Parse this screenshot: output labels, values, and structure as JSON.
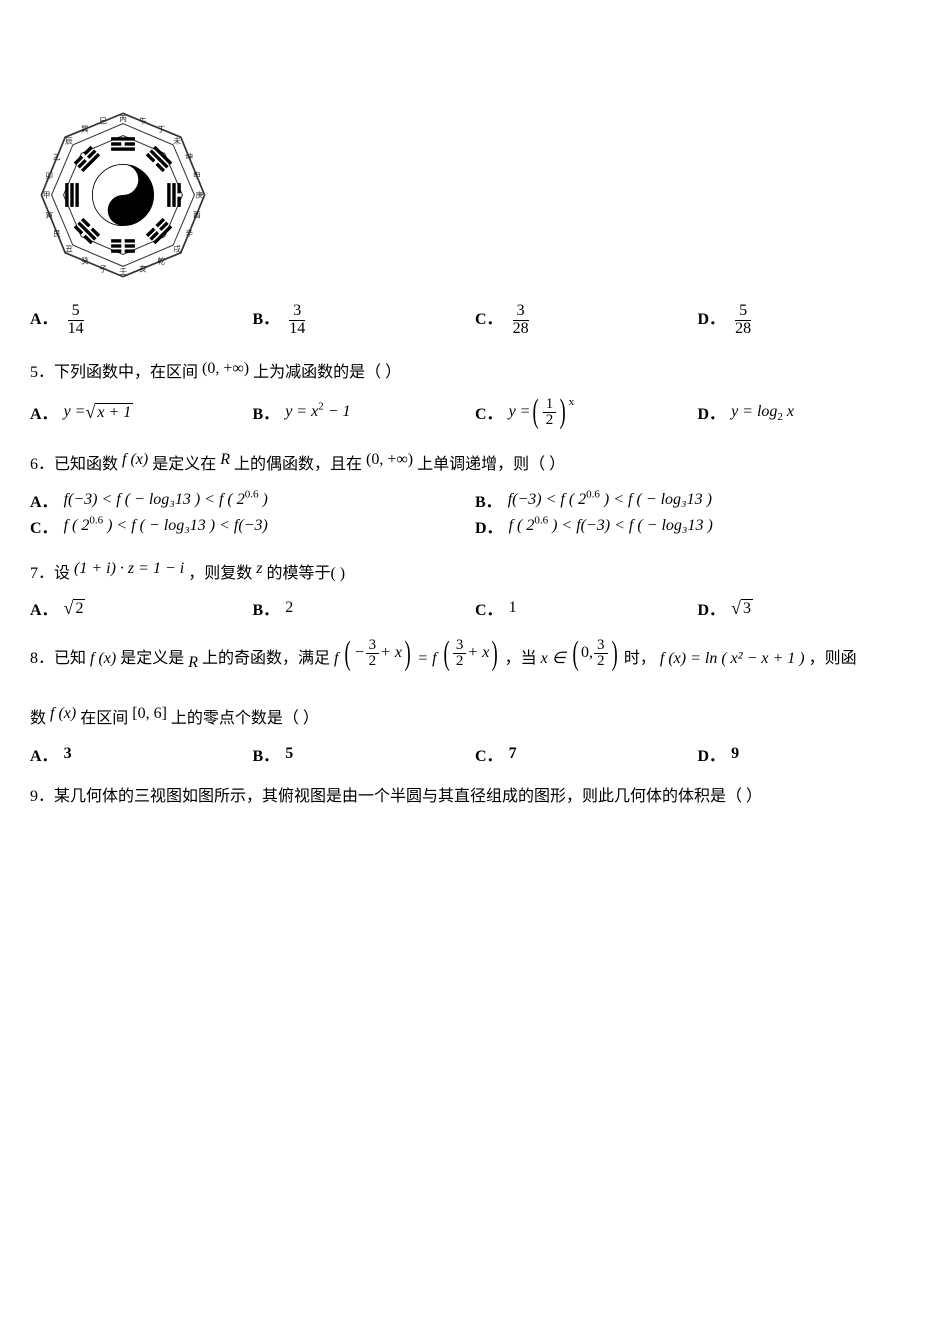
{
  "bagua": {
    "size": 170,
    "outer_ring_text": [
      "丙",
      "午",
      "丁",
      "未",
      "坤",
      "申",
      "庚",
      "酉",
      "辛",
      "戌",
      "乾",
      "亥",
      "壬",
      "子",
      "癸",
      "丑",
      "艮",
      "寅",
      "甲",
      "卯",
      "乙",
      "辰",
      "巽",
      "巳"
    ],
    "bg": "#ffffff",
    "stroke": "#3a3a3a",
    "yin": "#000000",
    "yang": "#ffffff"
  },
  "q4_opts": {
    "A_num": "5",
    "A_den": "14",
    "B_num": "3",
    "B_den": "14",
    "C_num": "3",
    "C_den": "28",
    "D_num": "5",
    "D_den": "28"
  },
  "q5": {
    "stem_prefix": "5．下列函数中，在区间",
    "interval": "(0, +∞)",
    "stem_suffix": "上为减函数的是（  ）",
    "A_lhs": "y =",
    "A_rad": "x + 1",
    "B": "y = x",
    "B_sup": "2",
    "B_tail": " − 1",
    "C_lhs": "y =",
    "C_frac_num": "1",
    "C_frac_den": "2",
    "C_exp": "x",
    "D": "y = log",
    "D_sub": "2",
    "D_tail": " x"
  },
  "q6": {
    "stem_a": "6．已知函数 ",
    "fx": "f (x)",
    "stem_b": " 是定义在 ",
    "R": "R",
    "stem_c": " 上的偶函数，且在 ",
    "interval": "(0, +∞)",
    "stem_d": " 上单调递增，则（  ）",
    "A": "f(−3) < f ( − log₃13 ) < f ( 2",
    "A_sup": "0.6",
    "A_tail": " )",
    "B": "f(−3) < f ( 2",
    "B_sup": "0.6",
    "B_tail": " ) < f ( − log₃13 )",
    "C": "f ( 2",
    "C_sup": "0.6",
    "C_tail": " ) < f ( − log₃13 ) < f(−3)",
    "D": "f ( 2",
    "D_sup": "0.6",
    "D_tail": " ) < f(−3) < f ( − log₃13 )"
  },
  "q7": {
    "stem_a": "7．设",
    "expr": "(1 + i) · z = 1 − i",
    "stem_b": "，则复数",
    "z": "z",
    "stem_c": "的模等于(   )",
    "A_rad": "2",
    "B": "2",
    "C": "1",
    "D_rad": "3"
  },
  "q8": {
    "stem_a": "8．已知 ",
    "fx": "f (x)",
    "stem_b": " 是定义是 ",
    "R": "R",
    "stem_c": " 上的奇函数，满足 ",
    "lhs_inner_a": "−",
    "three": "3",
    "two": "2",
    "plusx": " + x",
    "eq": " = ",
    "stem_d": "，当 ",
    "xin": "x ∈",
    "zero": "0,",
    "stem_e": " 时，",
    "rhs": "f (x) = ln ( x² − x + 1 )",
    "stem_f": "，则函",
    "line2_a": "数 ",
    "line2_b": " 在区间",
    "interval": "[0, 6]",
    "line2_c": "上的零点个数是（   ）",
    "A": "3",
    "B": "5",
    "C": "7",
    "D": "9"
  },
  "q9": {
    "stem": "9．某几何体的三视图如图所示，其俯视图是由一个半圆与其直径组成的图形，则此几何体的体积是（  ）"
  },
  "labels": {
    "A": "A．",
    "B": "B．",
    "C": "C．",
    "D": "D．"
  }
}
